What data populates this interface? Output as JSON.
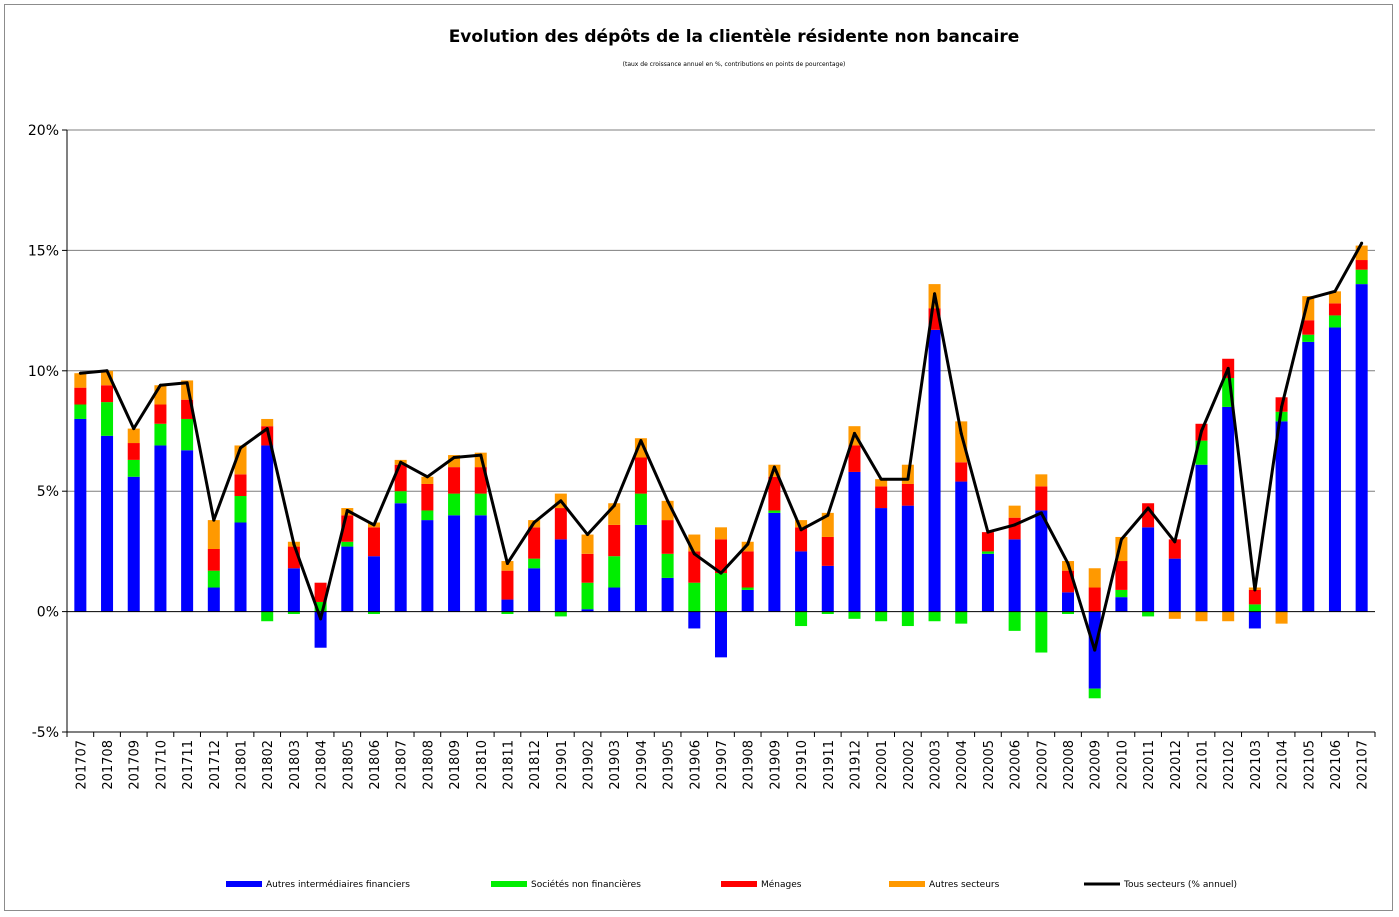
{
  "chart_data": {
    "type": "bar",
    "stacked": true,
    "title": "Evolution des dépôts de la clientèle résidente non bancaire",
    "subtitle": "(taux de croissance annuel en %, contributions en points de pourcentage)",
    "xlabel": "",
    "ylabel": "",
    "ylim": [
      -5,
      20
    ],
    "yticks": [
      -5,
      0,
      5,
      10,
      15,
      20
    ],
    "ytick_labels": [
      "-5%",
      "0%",
      "5%",
      "10%",
      "15%",
      "20%"
    ],
    "grid": true,
    "legend_position": "bottom",
    "categories": [
      "201707",
      "201708",
      "201709",
      "201710",
      "201711",
      "201712",
      "201801",
      "201802",
      "201803",
      "201804",
      "201805",
      "201806",
      "201807",
      "201808",
      "201809",
      "201810",
      "201811",
      "201812",
      "201901",
      "201902",
      "201903",
      "201904",
      "201905",
      "201906",
      "201907",
      "201908",
      "201909",
      "201910",
      "201911",
      "201912",
      "202001",
      "202002",
      "202003",
      "202004",
      "202005",
      "202006",
      "202007",
      "202008",
      "202009",
      "202010",
      "202011",
      "202012",
      "202101",
      "202102",
      "202103",
      "202104",
      "202105",
      "202106",
      "202107"
    ],
    "series": [
      {
        "name": "Autres intermédiaires financiers",
        "kind": "bar",
        "color": "#0000ff",
        "values": [
          8.0,
          7.3,
          5.6,
          6.9,
          6.7,
          1.0,
          3.7,
          6.9,
          1.8,
          -1.5,
          2.7,
          2.3,
          4.5,
          3.8,
          4.0,
          4.0,
          0.5,
          1.8,
          3.0,
          0.1,
          1.0,
          3.6,
          1.4,
          -0.7,
          -1.9,
          0.9,
          4.1,
          2.5,
          1.9,
          5.8,
          4.3,
          4.4,
          11.7,
          5.4,
          2.4,
          3.0,
          4.2,
          0.8,
          -3.2,
          0.6,
          3.5,
          2.2,
          6.1,
          8.5,
          -0.7,
          7.9,
          11.2,
          11.8,
          13.6
        ]
      },
      {
        "name": "Sociétés non financières",
        "kind": "bar",
        "color": "#00ee00",
        "values": [
          0.6,
          1.4,
          0.7,
          0.9,
          1.3,
          0.7,
          1.1,
          -0.4,
          -0.1,
          0.4,
          0.2,
          -0.1,
          0.5,
          0.4,
          0.9,
          0.9,
          -0.1,
          0.4,
          -0.2,
          1.1,
          1.3,
          1.3,
          1.0,
          1.2,
          1.6,
          0.1,
          0.1,
          -0.6,
          -0.1,
          -0.3,
          -0.4,
          -0.6,
          -0.4,
          -0.5,
          0.1,
          -0.8,
          -1.7,
          -0.1,
          -0.4,
          0.3,
          -0.2,
          0.0,
          1.0,
          1.2,
          0.3,
          0.4,
          0.3,
          0.5,
          0.6
        ]
      },
      {
        "name": "Ménages",
        "kind": "bar",
        "color": "#ff0000",
        "values": [
          0.7,
          0.7,
          0.7,
          0.8,
          0.8,
          0.9,
          0.9,
          0.8,
          0.9,
          0.8,
          1.1,
          1.2,
          1.1,
          1.1,
          1.1,
          1.1,
          1.2,
          1.3,
          1.3,
          1.2,
          1.3,
          1.5,
          1.4,
          1.3,
          1.4,
          1.5,
          1.4,
          1.0,
          1.2,
          1.1,
          0.9,
          0.9,
          0.9,
          0.8,
          0.8,
          0.9,
          1.0,
          0.9,
          1.0,
          1.2,
          1.0,
          0.8,
          0.7,
          0.8,
          0.6,
          0.6,
          0.6,
          0.5,
          0.4
        ]
      },
      {
        "name": "Autres secteurs",
        "kind": "bar",
        "color": "#ff9900",
        "values": [
          0.6,
          0.6,
          0.6,
          0.8,
          0.8,
          1.2,
          1.2,
          0.3,
          0.2,
          0.0,
          0.3,
          0.2,
          0.2,
          0.3,
          0.5,
          0.6,
          0.4,
          0.3,
          0.6,
          0.8,
          0.9,
          0.8,
          0.8,
          0.7,
          0.5,
          0.4,
          0.5,
          0.3,
          1.0,
          0.8,
          0.3,
          0.8,
          1.0,
          1.7,
          0.0,
          0.5,
          0.5,
          0.4,
          0.8,
          1.0,
          0.0,
          -0.3,
          -0.4,
          -0.4,
          0.1,
          -0.5,
          1.0,
          0.5,
          0.6
        ]
      },
      {
        "name": "Tous secteurs (% annuel)",
        "kind": "line",
        "color": "#000000",
        "values": [
          9.9,
          10.0,
          7.6,
          9.4,
          9.5,
          3.8,
          6.8,
          7.6,
          2.8,
          -0.3,
          4.2,
          3.6,
          6.2,
          5.6,
          6.4,
          6.5,
          2.0,
          3.7,
          4.6,
          3.2,
          4.4,
          7.1,
          4.6,
          2.4,
          1.6,
          2.8,
          6.0,
          3.4,
          4.0,
          7.4,
          5.5,
          5.5,
          13.2,
          7.4,
          3.3,
          3.6,
          4.1,
          2.0,
          -1.6,
          3.0,
          4.3,
          2.9,
          7.5,
          10.1,
          0.9,
          8.5,
          13.0,
          13.3,
          15.3
        ]
      }
    ]
  }
}
